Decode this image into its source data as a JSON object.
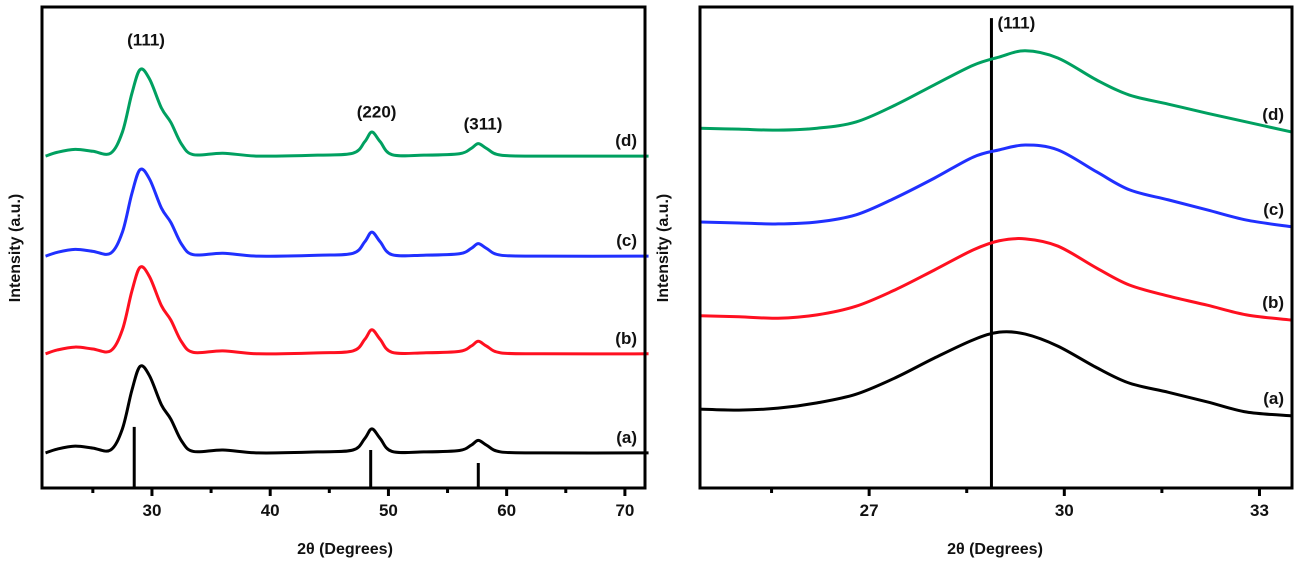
{
  "chart_data": [
    {
      "type": "line",
      "xlabel": "2θ (Degrees)",
      "ylabel": "Intensity (a.u.)",
      "xlim": [
        20.7,
        71.7
      ],
      "ylim": [
        0,
        100
      ],
      "xticks": [
        30,
        40,
        50,
        60,
        70
      ],
      "xtick_labels": [
        "30",
        "40",
        "50",
        "60",
        "70"
      ],
      "minor_xticks": [
        25,
        35,
        45,
        55,
        65
      ],
      "yticks": [],
      "grid": false,
      "x": [
        21,
        22,
        23.5,
        25,
        26.5,
        27.5,
        28.3,
        29,
        29.8,
        30.8,
        31.6,
        32.5,
        33.5,
        36,
        39,
        44,
        47,
        48,
        48.6,
        49.3,
        50.3,
        53,
        56,
        57,
        57.6,
        58.3,
        59.5,
        63,
        72
      ],
      "series": [
        {
          "name": "(a)",
          "color": "#000000",
          "values": [
            7.3,
            8.1,
            8.7,
            8.3,
            7.9,
            12.3,
            20.3,
            25.3,
            23.3,
            17.3,
            14.3,
            9.8,
            7.6,
            7.9,
            7.3,
            7.5,
            7.9,
            10.3,
            12.3,
            10.3,
            7.6,
            7.5,
            7.8,
            8.9,
            9.9,
            8.9,
            7.5,
            7.3,
            7.3
          ]
        },
        {
          "name": "(b)",
          "color": "#ff1020",
          "values": [
            27.9,
            28.7,
            29.3,
            28.9,
            28.5,
            32.9,
            40.9,
            45.9,
            43.9,
            37.9,
            34.9,
            30.4,
            28.2,
            28.5,
            27.9,
            28.1,
            28.5,
            30.9,
            32.9,
            30.9,
            28.2,
            28.1,
            28.4,
            29.5,
            30.5,
            29.5,
            28.1,
            27.9,
            27.9
          ]
        },
        {
          "name": "(c)",
          "color": "#2030ff",
          "values": [
            48.2,
            49.0,
            49.6,
            49.2,
            48.8,
            53.2,
            61.2,
            66.2,
            64.2,
            58.2,
            55.2,
            50.7,
            48.5,
            48.8,
            48.2,
            48.4,
            48.8,
            51.2,
            53.2,
            51.2,
            48.5,
            48.4,
            48.7,
            49.8,
            50.8,
            49.8,
            48.4,
            48.2,
            48.2
          ]
        },
        {
          "name": "(d)",
          "color": "#00a060",
          "values": [
            69.0,
            69.8,
            70.4,
            70.0,
            69.6,
            74.0,
            82.0,
            87.0,
            85.0,
            79.0,
            76.0,
            71.5,
            69.3,
            69.6,
            69.0,
            69.2,
            69.6,
            72.0,
            74.0,
            72.0,
            69.3,
            69.2,
            69.5,
            70.6,
            71.6,
            70.6,
            69.2,
            69.0,
            69.0
          ]
        }
      ],
      "reference_lines": [
        {
          "x": 28.5,
          "height": 12.7
        },
        {
          "x": 48.5,
          "height": 7.9
        },
        {
          "x": 57.6,
          "height": 5.2
        }
      ],
      "annotations": [
        {
          "text": "(111)",
          "x": 29.5,
          "y": 92
        },
        {
          "text": "(220)",
          "x": 49.0,
          "y": 77
        },
        {
          "text": "(311)",
          "x": 58.0,
          "y": 74.5
        }
      ]
    },
    {
      "type": "line",
      "xlabel": "2θ (Degrees)",
      "ylabel": "Intensity (a.u.)",
      "xlim": [
        24.4,
        33.5
      ],
      "ylim": [
        0,
        100
      ],
      "xticks": [
        27,
        30,
        33
      ],
      "xtick_labels": [
        "27",
        "30",
        "33"
      ],
      "minor_xticks": [
        25.5,
        28.5,
        31.5
      ],
      "yticks": [],
      "grid": false,
      "x": [
        24.4,
        25,
        25.6,
        26.2,
        26.8,
        27.4,
        28,
        28.6,
        29.0,
        29.4,
        29.9,
        30.5,
        31,
        31.6,
        32.2,
        32.8,
        33.5
      ],
      "series": [
        {
          "name": "(a)",
          "color": "#000000",
          "values": [
            16.4,
            16.2,
            16.6,
            17.7,
            19.5,
            22.9,
            27.0,
            30.8,
            32.4,
            32.0,
            29.5,
            25.0,
            21.8,
            19.9,
            17.9,
            15.8,
            15.0
          ]
        },
        {
          "name": "(b)",
          "color": "#ff1020",
          "values": [
            35.8,
            35.6,
            35.3,
            36.0,
            37.8,
            41.2,
            45.3,
            49.5,
            51.4,
            51.8,
            50.3,
            45.7,
            42.2,
            39.9,
            38.0,
            36.0,
            34.9
          ]
        },
        {
          "name": "(c)",
          "color": "#2030ff",
          "values": [
            55.3,
            55.1,
            54.9,
            55.3,
            56.8,
            60.3,
            64.4,
            68.8,
            70.3,
            71.3,
            70.3,
            65.7,
            62.0,
            59.9,
            57.8,
            55.7,
            54.3
          ]
        },
        {
          "name": "(d)",
          "color": "#00a060",
          "values": [
            74.8,
            74.6,
            74.4,
            74.8,
            76.1,
            79.6,
            83.8,
            87.9,
            89.6,
            90.9,
            89.4,
            84.8,
            81.7,
            79.8,
            77.9,
            76.1,
            74.0
          ]
        }
      ],
      "reference_lines": [
        {
          "x": 28.88,
          "height": 97.7
        }
      ],
      "annotations": [
        {
          "text": "(111)",
          "x": 29.3,
          "y": 95.5
        }
      ]
    }
  ]
}
